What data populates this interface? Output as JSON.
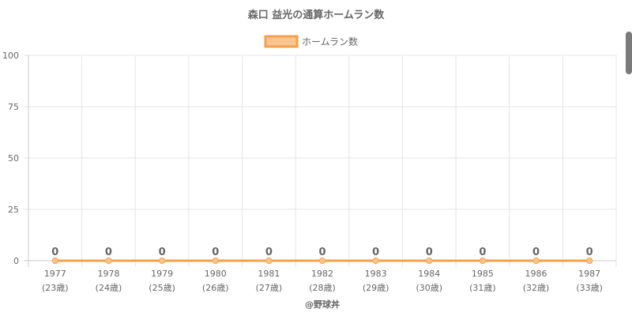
{
  "chart_data": {
    "type": "line",
    "title": "森口 益光の通算ホームラン数",
    "legend": {
      "label": "ホームラン数",
      "position": "top"
    },
    "categories": [
      "1977",
      "1978",
      "1979",
      "1980",
      "1981",
      "1982",
      "1983",
      "1984",
      "1985",
      "1986",
      "1987"
    ],
    "category_sublabels": [
      "(23歳)",
      "(24歳)",
      "(25歳)",
      "(26歳)",
      "(27歳)",
      "(28歳)",
      "(29歳)",
      "(30歳)",
      "(31歳)",
      "(32歳)",
      "(33歳)"
    ],
    "series": [
      {
        "name": "ホームラン数",
        "values": [
          0,
          0,
          0,
          0,
          0,
          0,
          0,
          0,
          0,
          0,
          0
        ]
      }
    ],
    "ylim": [
      0,
      100
    ],
    "yticks": [
      0,
      25,
      50,
      75,
      100
    ],
    "grid": true,
    "data_labels": true,
    "colors": {
      "line": "#f5a04a",
      "fill": "#f9c58f",
      "grid": "#e5e5e5",
      "text": "#666666"
    }
  },
  "footer": {
    "source": "@野球丼"
  }
}
